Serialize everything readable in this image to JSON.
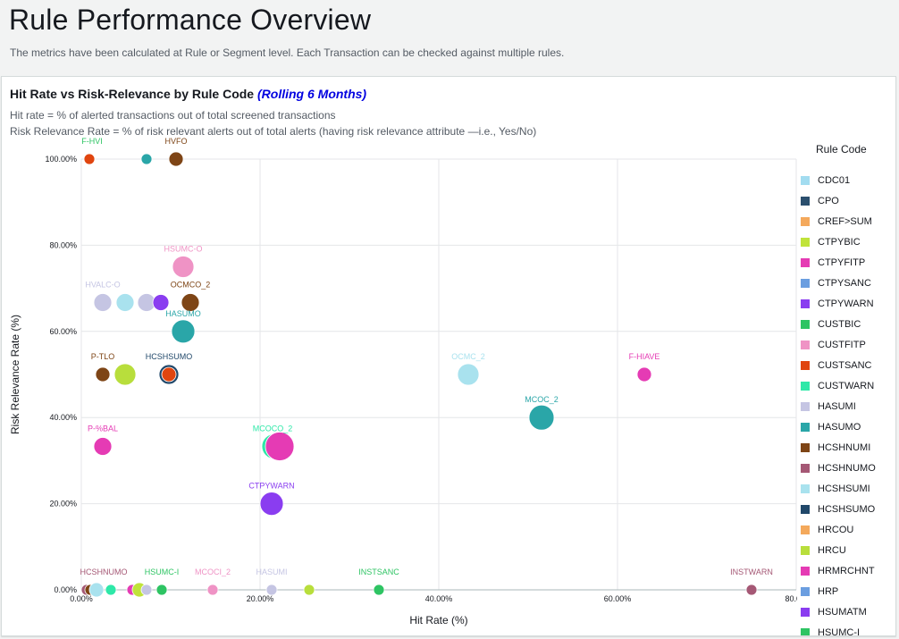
{
  "header": {
    "title": "Rule Performance Overview",
    "subtitle": "The metrics have been calculated at Rule or Segment level. Each Transaction can be checked against multiple rules."
  },
  "card": {
    "title": "Hit Rate vs Risk-Relevance by Rule Code",
    "title_accent": "(Rolling 6 Months)",
    "desc_line1": "Hit rate = % of alerted transactions out of total screened transactions",
    "desc_line2": "Risk Relevance Rate = % of risk relevant alerts out of total alerts (having risk relevance attribute —i.e., Yes/No)"
  },
  "chart_data": {
    "type": "scatter",
    "subtype": "bubble",
    "xlabel": "Hit Rate (%)",
    "ylabel": "Risk Relevance Rate (%)",
    "xlim": [
      0,
      80
    ],
    "ylim": [
      0,
      100
    ],
    "x_ticks": [
      "0.00%",
      "20.00%",
      "40.00%",
      "60.00%",
      "80.0..."
    ],
    "y_ticks": [
      "0.00%",
      "20.00%",
      "40.00%",
      "60.00%",
      "80.00%",
      "100.00%"
    ],
    "grid": true,
    "legend_title": "Rule Code",
    "legend_position": "right",
    "legend": [
      {
        "name": "CDC01",
        "color": "#a2dcf0"
      },
      {
        "name": "CPO",
        "color": "#2b4f6e"
      },
      {
        "name": "CREF>SUM",
        "color": "#f4a95c"
      },
      {
        "name": "CTPYBIC",
        "color": "#c0e33a"
      },
      {
        "name": "CTPYFITP",
        "color": "#e53bb4"
      },
      {
        "name": "CTPYSANC",
        "color": "#6b9ee0"
      },
      {
        "name": "CTPYWARN",
        "color": "#8a3df0"
      },
      {
        "name": "CUSTBIC",
        "color": "#2ec463"
      },
      {
        "name": "CUSTFITP",
        "color": "#ef93c5"
      },
      {
        "name": "CUSTSANC",
        "color": "#e0450f"
      },
      {
        "name": "CUSTWARN",
        "color": "#2ee8a8"
      },
      {
        "name": "HASUMI",
        "color": "#c5c5e3"
      },
      {
        "name": "HASUMO",
        "color": "#2aa6a8"
      },
      {
        "name": "HCSHNUMI",
        "color": "#7e4516"
      },
      {
        "name": "HCSHNUMO",
        "color": "#a55875"
      },
      {
        "name": "HCSHSUMI",
        "color": "#a9e2ee"
      },
      {
        "name": "HCSHSUMO",
        "color": "#21486a"
      },
      {
        "name": "HRCOU",
        "color": "#f4a95c"
      },
      {
        "name": "HRCU",
        "color": "#b8de3c"
      },
      {
        "name": "HRMRCHNT",
        "color": "#e53bb4"
      },
      {
        "name": "HRP",
        "color": "#6b9ee0"
      },
      {
        "name": "HSUMATM",
        "color": "#8a3df0"
      },
      {
        "name": "HSUMC-I",
        "color": "#2ec463"
      }
    ],
    "points": [
      {
        "x": 0.9,
        "y": 100,
        "size": 6,
        "color": "#e0450f"
      },
      {
        "x": 7.3,
        "y": 100,
        "size": 6,
        "color": "#2aa6a8"
      },
      {
        "x": 10.6,
        "y": 100,
        "size": 8,
        "color": "#7e4516"
      },
      {
        "x": 11.4,
        "y": 75,
        "size": 12,
        "color": "#ef93c5"
      },
      {
        "x": 2.4,
        "y": 66.7,
        "size": 10,
        "color": "#c5c5e3"
      },
      {
        "x": 4.9,
        "y": 66.7,
        "size": 10,
        "color": "#a9e2ee"
      },
      {
        "x": 7.3,
        "y": 66.7,
        "size": 10,
        "color": "#c5c5e3"
      },
      {
        "x": 8.9,
        "y": 66.7,
        "size": 9,
        "color": "#8a3df0"
      },
      {
        "x": 12.2,
        "y": 66.7,
        "size": 10,
        "color": "#7e4516"
      },
      {
        "x": 11.4,
        "y": 60,
        "size": 13,
        "color": "#2aa6a8"
      },
      {
        "x": 2.4,
        "y": 50,
        "size": 8,
        "color": "#7e4516"
      },
      {
        "x": 4.9,
        "y": 50,
        "size": 12,
        "color": "#b8de3c"
      },
      {
        "x": 9.8,
        "y": 50,
        "size": 11,
        "color": "#21486a"
      },
      {
        "x": 9.8,
        "y": 50,
        "size": 8,
        "color": "#e0450f"
      },
      {
        "x": 43.3,
        "y": 50,
        "size": 12,
        "color": "#a9e2ee"
      },
      {
        "x": 63.0,
        "y": 50,
        "size": 8,
        "color": "#e53bb4"
      },
      {
        "x": 51.5,
        "y": 40,
        "size": 14,
        "color": "#2aa6a8"
      },
      {
        "x": 2.4,
        "y": 33.3,
        "size": 10,
        "color": "#e53bb4"
      },
      {
        "x": 21.6,
        "y": 33.3,
        "size": 14,
        "color": "#2ee8a8"
      },
      {
        "x": 22.2,
        "y": 33.3,
        "size": 16,
        "color": "#e53bb4"
      },
      {
        "x": 21.3,
        "y": 20,
        "size": 13,
        "color": "#8a3df0"
      },
      {
        "x": 0.6,
        "y": 0,
        "size": 6,
        "color": "#a55875"
      },
      {
        "x": 1.0,
        "y": 0,
        "size": 6,
        "color": "#7e4516"
      },
      {
        "x": 1.7,
        "y": 0,
        "size": 8,
        "color": "#a9e2ee"
      },
      {
        "x": 3.3,
        "y": 0,
        "size": 6,
        "color": "#2ee8a8"
      },
      {
        "x": 5.7,
        "y": 0,
        "size": 6,
        "color": "#e53bb4"
      },
      {
        "x": 6.5,
        "y": 0,
        "size": 8,
        "color": "#c0e33a"
      },
      {
        "x": 7.3,
        "y": 0,
        "size": 6,
        "color": "#c5c5e3"
      },
      {
        "x": 9.0,
        "y": 0,
        "size": 6,
        "color": "#2ec463"
      },
      {
        "x": 14.7,
        "y": 0,
        "size": 6,
        "color": "#ef93c5"
      },
      {
        "x": 21.3,
        "y": 0,
        "size": 6,
        "color": "#c5c5e3"
      },
      {
        "x": 25.5,
        "y": 0,
        "size": 6,
        "color": "#b8de3c"
      },
      {
        "x": 33.3,
        "y": 0,
        "size": 6,
        "color": "#2ec463"
      },
      {
        "x": 75.0,
        "y": 0,
        "size": 6,
        "color": "#a55875"
      }
    ],
    "annotations": [
      {
        "text": "F-HVI",
        "x": 1.2,
        "y": 100,
        "color": "#2ec463"
      },
      {
        "text": "HVFO",
        "x": 10.6,
        "y": 100,
        "color": "#7e4516"
      },
      {
        "text": "HSUMC-O",
        "x": 11.4,
        "y": 75,
        "color": "#ef93c5"
      },
      {
        "text": "HVALC-O",
        "x": 2.4,
        "y": 66.7,
        "color": "#c5c5e3"
      },
      {
        "text": "OCMCO_2",
        "x": 12.2,
        "y": 66.7,
        "color": "#7e4516"
      },
      {
        "text": "HASUMO",
        "x": 11.4,
        "y": 60,
        "color": "#2aa6a8"
      },
      {
        "text": "P-TLO",
        "x": 2.4,
        "y": 50,
        "color": "#7e4516"
      },
      {
        "text": "HCSHSUMO",
        "x": 9.8,
        "y": 50,
        "color": "#21486a"
      },
      {
        "text": "OCMC_2",
        "x": 43.3,
        "y": 50,
        "color": "#a9e2ee"
      },
      {
        "text": "F-HIAVE",
        "x": 63.0,
        "y": 50,
        "color": "#e53bb4"
      },
      {
        "text": "MCOC_2",
        "x": 51.5,
        "y": 40,
        "color": "#2aa6a8"
      },
      {
        "text": "P-%BAL",
        "x": 2.4,
        "y": 33.3,
        "color": "#e53bb4"
      },
      {
        "text": "MCOCO_2",
        "x": 21.4,
        "y": 33.3,
        "color": "#2ee8a8"
      },
      {
        "text": "CTPYWARN",
        "x": 21.3,
        "y": 20,
        "color": "#8a3df0"
      },
      {
        "text": "HCSHNUMO",
        "x": 2.5,
        "y": 0,
        "color": "#a55875"
      },
      {
        "text": "HSUMC-I",
        "x": 9.0,
        "y": 0,
        "color": "#2ec463"
      },
      {
        "text": "MCOCI_2",
        "x": 14.7,
        "y": 0,
        "color": "#ef93c5"
      },
      {
        "text": "HASUMI",
        "x": 21.3,
        "y": 0,
        "color": "#c5c5e3"
      },
      {
        "text": "INSTSANC",
        "x": 33.3,
        "y": 0,
        "color": "#2ec463"
      },
      {
        "text": "INSTWARN",
        "x": 75.0,
        "y": 0,
        "color": "#a55875"
      }
    ]
  }
}
